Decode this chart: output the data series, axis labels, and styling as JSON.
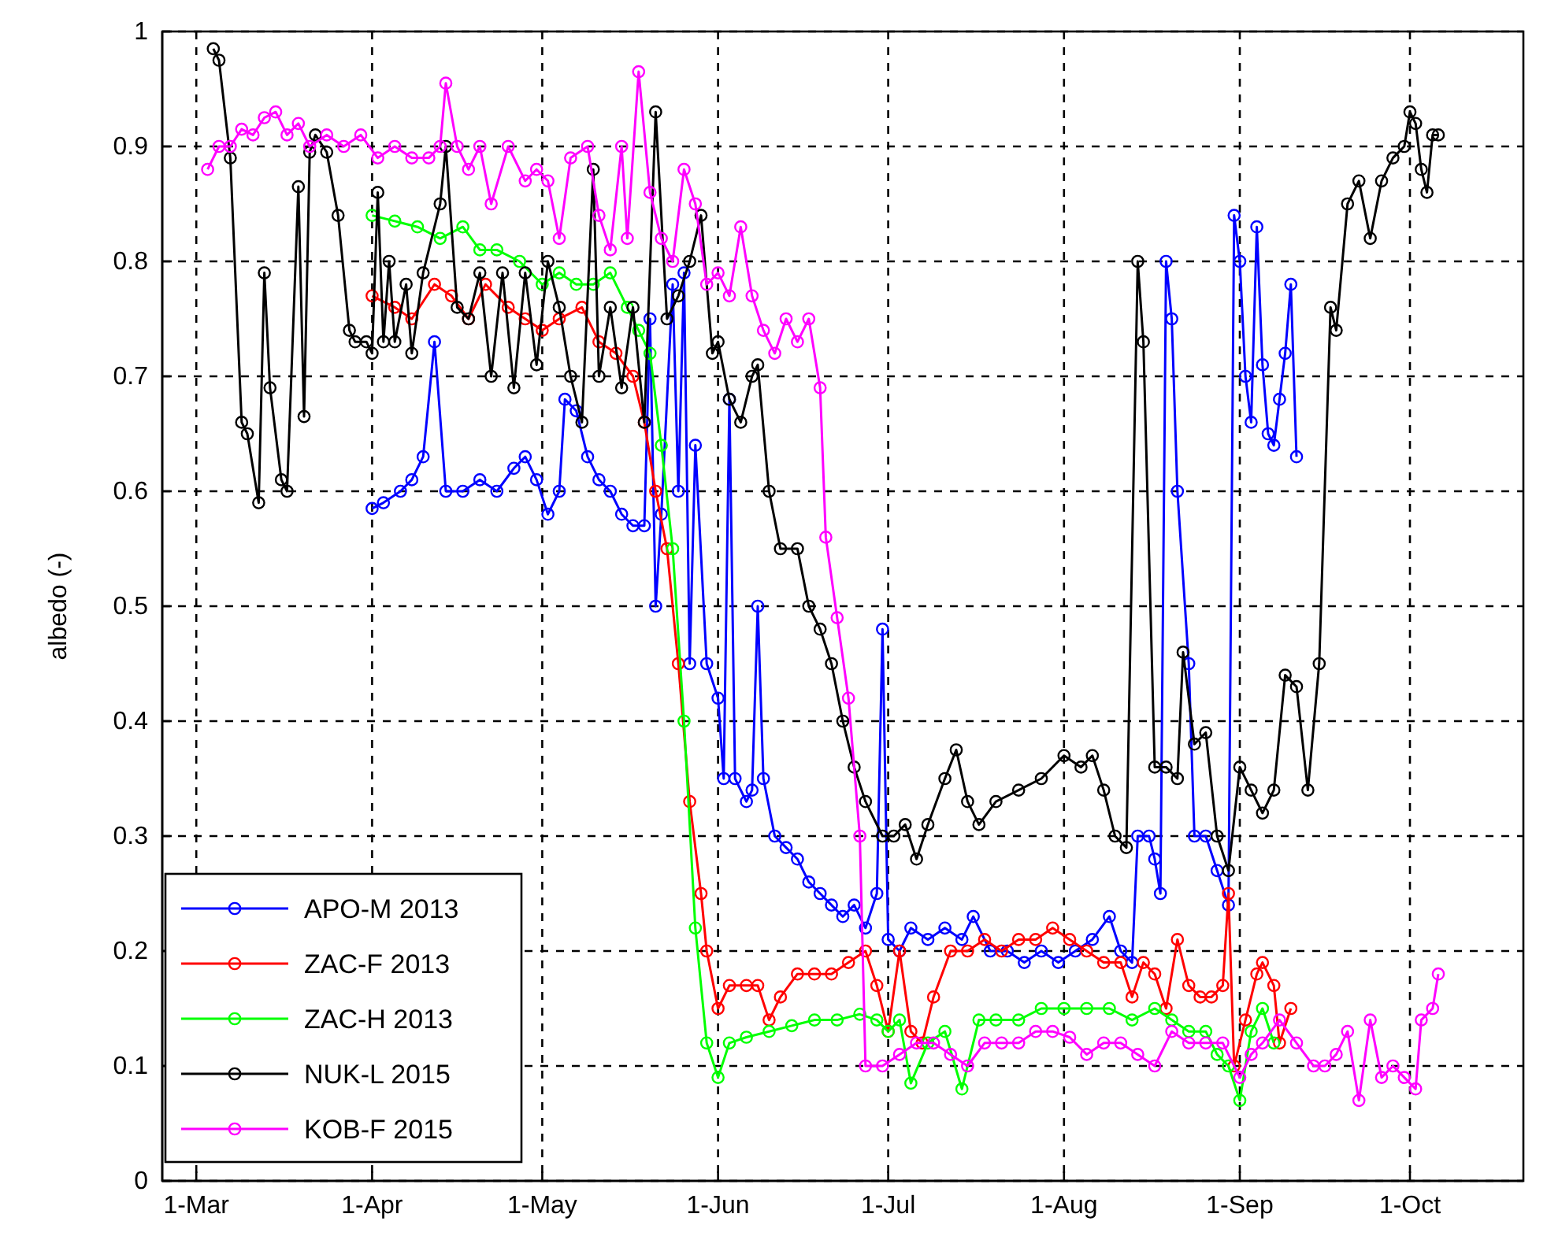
{
  "chart_data": {
    "type": "line",
    "ylabel": "albedo (-)",
    "xlim": [
      "--02-23",
      "--10-21"
    ],
    "ylim": [
      0,
      1
    ],
    "xticks": [
      {
        "value": "--03-01",
        "label": "1-Mar"
      },
      {
        "value": "--04-01",
        "label": "1-Apr"
      },
      {
        "value": "--05-01",
        "label": "1-May"
      },
      {
        "value": "--06-01",
        "label": "1-Jun"
      },
      {
        "value": "--07-01",
        "label": "1-Jul"
      },
      {
        "value": "--08-01",
        "label": "1-Aug"
      },
      {
        "value": "--09-01",
        "label": "1-Sep"
      },
      {
        "value": "--10-01",
        "label": "1-Oct"
      }
    ],
    "yticks": [
      0,
      0.1,
      0.2,
      0.3,
      0.4,
      0.5,
      0.6,
      0.7,
      0.8,
      0.9,
      1
    ],
    "grid": true,
    "legend": "bottom left",
    "marker": "circle",
    "line_style": "solid",
    "series": [
      {
        "name": "APO-M 2013",
        "color": "#0000ff",
        "x": [
          "--04-01",
          "--04-03",
          "--04-06",
          "--04-08",
          "--04-10",
          "--04-12",
          "--04-14",
          "--04-17",
          "--04-20",
          "--04-23",
          "--04-26",
          "--04-28",
          "--04-30",
          "--05-02",
          "--05-04",
          "--05-05",
          "--05-07",
          "--05-09",
          "--05-11",
          "--05-13",
          "--05-15",
          "--05-17",
          "--05-19",
          "--05-20",
          "--05-21",
          "--05-22",
          "--05-24",
          "--05-25",
          "--05-26",
          "--05-27",
          "--05-28",
          "--05-30",
          "--06-01",
          "--06-02",
          "--06-03",
          "--06-04",
          "--06-06",
          "--06-07",
          "--06-08",
          "--06-09",
          "--06-11",
          "--06-13",
          "--06-15",
          "--06-17",
          "--06-19",
          "--06-21",
          "--06-23",
          "--06-25",
          "--06-27",
          "--06-29",
          "--06-30",
          "--07-01",
          "--07-03",
          "--07-05",
          "--07-08",
          "--07-11",
          "--07-14",
          "--07-16",
          "--07-19",
          "--07-22",
          "--07-25",
          "--07-28",
          "--07-31",
          "--08-03",
          "--08-06",
          "--08-09",
          "--08-11",
          "--08-13",
          "--08-14",
          "--08-16",
          "--08-17",
          "--08-18",
          "--08-19",
          "--08-20",
          "--08-21",
          "--08-23",
          "--08-24",
          "--08-26",
          "--08-28",
          "--08-30",
          "--08-31",
          "--09-01",
          "--09-02",
          "--09-03",
          "--09-04",
          "--09-05",
          "--09-06",
          "--09-07",
          "--09-08",
          "--09-09",
          "--09-10",
          "--09-11"
        ],
        "values": [
          0.585,
          0.59,
          0.6,
          0.61,
          0.63,
          0.73,
          0.6,
          0.6,
          0.61,
          0.6,
          0.62,
          0.63,
          0.61,
          0.58,
          0.6,
          0.68,
          0.67,
          0.63,
          0.61,
          0.6,
          0.58,
          0.57,
          0.57,
          0.75,
          0.5,
          0.58,
          0.78,
          0.6,
          0.79,
          0.45,
          0.64,
          0.45,
          0.42,
          0.35,
          0.68,
          0.35,
          0.33,
          0.34,
          0.5,
          0.35,
          0.3,
          0.29,
          0.28,
          0.26,
          0.25,
          0.24,
          0.23,
          0.24,
          0.22,
          0.25,
          0.48,
          0.21,
          0.2,
          0.22,
          0.21,
          0.22,
          0.21,
          0.23,
          0.2,
          0.2,
          0.19,
          0.2,
          0.19,
          0.2,
          0.21,
          0.23,
          0.2,
          0.19,
          0.3,
          0.3,
          0.28,
          0.25,
          0.8,
          0.75,
          0.6,
          0.45,
          0.3,
          0.3,
          0.27,
          0.24,
          0.84,
          0.8,
          0.7,
          0.66,
          0.83,
          0.71,
          0.65,
          0.64,
          0.68,
          0.72,
          0.78,
          0.63
        ]
      },
      {
        "name": "ZAC-F 2013",
        "color": "#ff0000",
        "x": [
          "--04-01",
          "--04-05",
          "--04-08",
          "--04-12",
          "--04-15",
          "--04-18",
          "--04-21",
          "--04-25",
          "--04-28",
          "--05-01",
          "--05-04",
          "--05-08",
          "--05-11",
          "--05-14",
          "--05-17",
          "--05-19",
          "--05-21",
          "--05-23",
          "--05-25",
          "--05-27",
          "--05-29",
          "--05-30",
          "--06-01",
          "--06-03",
          "--06-06",
          "--06-08",
          "--06-10",
          "--06-12",
          "--06-15",
          "--06-18",
          "--06-21",
          "--06-24",
          "--06-27",
          "--06-29",
          "--07-01",
          "--07-03",
          "--07-05",
          "--07-07",
          "--07-09",
          "--07-12",
          "--07-15",
          "--07-18",
          "--07-21",
          "--07-24",
          "--07-27",
          "--07-30",
          "--08-02",
          "--08-05",
          "--08-08",
          "--08-11",
          "--08-13",
          "--08-15",
          "--08-17",
          "--08-19",
          "--08-21",
          "--08-23",
          "--08-25",
          "--08-27",
          "--08-29",
          "--08-30",
          "--08-31",
          "--09-02",
          "--09-04",
          "--09-05",
          "--09-07",
          "--09-08",
          "--09-10"
        ],
        "values": [
          0.77,
          0.76,
          0.75,
          0.78,
          0.77,
          0.75,
          0.78,
          0.76,
          0.75,
          0.74,
          0.75,
          0.76,
          0.73,
          0.72,
          0.7,
          0.66,
          0.6,
          0.55,
          0.45,
          0.33,
          0.25,
          0.2,
          0.15,
          0.17,
          0.17,
          0.17,
          0.14,
          0.16,
          0.18,
          0.18,
          0.18,
          0.19,
          0.2,
          0.17,
          0.13,
          0.2,
          0.13,
          0.12,
          0.16,
          0.2,
          0.2,
          0.21,
          0.2,
          0.21,
          0.21,
          0.22,
          0.21,
          0.2,
          0.19,
          0.19,
          0.16,
          0.19,
          0.18,
          0.15,
          0.21,
          0.17,
          0.16,
          0.16,
          0.17,
          0.25,
          0.1,
          0.14,
          0.18,
          0.19,
          0.17,
          0.12,
          0.15
        ]
      },
      {
        "name": "ZAC-H 2013",
        "color": "#00ff00",
        "x": [
          "--04-01",
          "--04-05",
          "--04-09",
          "--04-13",
          "--04-17",
          "--04-20",
          "--04-23",
          "--04-27",
          "--05-01",
          "--05-04",
          "--05-07",
          "--05-10",
          "--05-13",
          "--05-16",
          "--05-18",
          "--05-20",
          "--05-22",
          "--05-24",
          "--05-26",
          "--05-28",
          "--05-30",
          "--06-01",
          "--06-03",
          "--06-06",
          "--06-10",
          "--06-14",
          "--06-18",
          "--06-22",
          "--06-26",
          "--06-29",
          "--07-01",
          "--07-03",
          "--07-05",
          "--07-08",
          "--07-11",
          "--07-14",
          "--07-17",
          "--07-20",
          "--07-24",
          "--07-28",
          "--08-01",
          "--08-05",
          "--08-09",
          "--08-13",
          "--08-17",
          "--08-20",
          "--08-23",
          "--08-26",
          "--08-28",
          "--08-30",
          "--09-01",
          "--09-03",
          "--09-05",
          "--09-07"
        ],
        "values": [
          0.84,
          0.835,
          0.83,
          0.82,
          0.83,
          0.81,
          0.81,
          0.8,
          0.78,
          0.79,
          0.78,
          0.78,
          0.79,
          0.76,
          0.74,
          0.72,
          0.64,
          0.55,
          0.4,
          0.22,
          0.12,
          0.09,
          0.12,
          0.125,
          0.13,
          0.135,
          0.14,
          0.14,
          0.145,
          0.14,
          0.13,
          0.14,
          0.085,
          0.12,
          0.13,
          0.08,
          0.14,
          0.14,
          0.14,
          0.15,
          0.15,
          0.15,
          0.15,
          0.14,
          0.15,
          0.14,
          0.13,
          0.13,
          0.11,
          0.1,
          0.07,
          0.13,
          0.15,
          0.12
        ]
      },
      {
        "name": "NUK-L 2015",
        "color": "#000000",
        "x": [
          "--03-04",
          "--03-05",
          "--03-07",
          "--03-09",
          "--03-10",
          "--03-12",
          "--03-13",
          "--03-14",
          "--03-16",
          "--03-17",
          "--03-19",
          "--03-20",
          "--03-21",
          "--03-22",
          "--03-24",
          "--03-26",
          "--03-28",
          "--03-29",
          "--03-31",
          "--04-01",
          "--04-02",
          "--04-03",
          "--04-04",
          "--04-05",
          "--04-07",
          "--04-08",
          "--04-10",
          "--04-13",
          "--04-14",
          "--04-16",
          "--04-18",
          "--04-20",
          "--04-22",
          "--04-24",
          "--04-26",
          "--04-28",
          "--04-30",
          "--05-02",
          "--05-04",
          "--05-06",
          "--05-08",
          "--05-10",
          "--05-11",
          "--05-13",
          "--05-15",
          "--05-17",
          "--05-19",
          "--05-21",
          "--05-23",
          "--05-25",
          "--05-27",
          "--05-29",
          "--05-31",
          "--06-01",
          "--06-03",
          "--06-05",
          "--06-07",
          "--06-08",
          "--06-10",
          "--06-12",
          "--06-15",
          "--06-17",
          "--06-19",
          "--06-21",
          "--06-23",
          "--06-25",
          "--06-27",
          "--06-30",
          "--07-02",
          "--07-04",
          "--07-06",
          "--07-08",
          "--07-11",
          "--07-13",
          "--07-15",
          "--07-17",
          "--07-20",
          "--07-24",
          "--07-28",
          "--08-01",
          "--08-04",
          "--08-06",
          "--08-08",
          "--08-10",
          "--08-12",
          "--08-14",
          "--08-15",
          "--08-17",
          "--08-19",
          "--08-21",
          "--08-22",
          "--08-24",
          "--08-26",
          "--08-28",
          "--08-30",
          "--09-01",
          "--09-03",
          "--09-05",
          "--09-07",
          "--09-09",
          "--09-11",
          "--09-13",
          "--09-15",
          "--09-17",
          "--09-18",
          "--09-20",
          "--09-22",
          "--09-24",
          "--09-26",
          "--09-28",
          "--09-30",
          "--10-01",
          "--10-02",
          "--10-03",
          "--10-04",
          "--10-05",
          "--10-06"
        ],
        "values": [
          0.985,
          0.975,
          0.89,
          0.66,
          0.65,
          0.59,
          0.79,
          0.69,
          0.61,
          0.6,
          0.865,
          0.665,
          0.895,
          0.91,
          0.895,
          0.84,
          0.74,
          0.73,
          0.73,
          0.72,
          0.86,
          0.73,
          0.8,
          0.73,
          0.78,
          0.72,
          0.79,
          0.85,
          0.9,
          0.76,
          0.75,
          0.79,
          0.7,
          0.79,
          0.69,
          0.79,
          0.71,
          0.8,
          0.76,
          0.7,
          0.66,
          0.88,
          0.7,
          0.76,
          0.69,
          0.76,
          0.66,
          0.93,
          0.75,
          0.77,
          0.8,
          0.84,
          0.72,
          0.73,
          0.68,
          0.66,
          0.7,
          0.71,
          0.6,
          0.55,
          0.55,
          0.5,
          0.48,
          0.45,
          0.4,
          0.36,
          0.33,
          0.3,
          0.3,
          0.31,
          0.28,
          0.31,
          0.35,
          0.375,
          0.33,
          0.31,
          0.33,
          0.34,
          0.35,
          0.37,
          0.36,
          0.37,
          0.34,
          0.3,
          0.29,
          0.8,
          0.73,
          0.36,
          0.36,
          0.35,
          0.46,
          0.38,
          0.39,
          0.3,
          0.27,
          0.36,
          0.34,
          0.32,
          0.34,
          0.44,
          0.43,
          0.34,
          0.45,
          0.76,
          0.74,
          0.85,
          0.87,
          0.82,
          0.87,
          0.89,
          0.9,
          0.93,
          0.92,
          0.88,
          0.86,
          0.91,
          0.91
        ]
      },
      {
        "name": "KOB-F 2015",
        "color": "#ff00ff",
        "x": [
          "--03-03",
          "--03-05",
          "--03-07",
          "--03-09",
          "--03-11",
          "--03-13",
          "--03-15",
          "--03-17",
          "--03-19",
          "--03-21",
          "--03-24",
          "--03-27",
          "--03-30",
          "--04-02",
          "--04-05",
          "--04-08",
          "--04-11",
          "--04-13",
          "--04-14",
          "--04-16",
          "--04-18",
          "--04-20",
          "--04-22",
          "--04-25",
          "--04-28",
          "--04-30",
          "--05-02",
          "--05-04",
          "--05-06",
          "--05-09",
          "--05-11",
          "--05-13",
          "--05-15",
          "--05-16",
          "--05-18",
          "--05-20",
          "--05-22",
          "--05-24",
          "--05-26",
          "--05-28",
          "--05-30",
          "--06-01",
          "--06-03",
          "--06-05",
          "--06-07",
          "--06-09",
          "--06-11",
          "--06-13",
          "--06-15",
          "--06-17",
          "--06-19",
          "--06-20",
          "--06-22",
          "--06-24",
          "--06-26",
          "--06-27",
          "--06-30",
          "--07-03",
          "--07-06",
          "--07-09",
          "--07-12",
          "--07-15",
          "--07-18",
          "--07-21",
          "--07-24",
          "--07-27",
          "--07-30",
          "--08-02",
          "--08-05",
          "--08-08",
          "--08-11",
          "--08-14",
          "--08-17",
          "--08-20",
          "--08-23",
          "--08-26",
          "--08-29",
          "--09-01",
          "--09-03",
          "--09-05",
          "--09-08",
          "--09-11",
          "--09-14",
          "--09-16",
          "--09-18",
          "--09-20",
          "--09-22",
          "--09-24",
          "--09-26",
          "--09-28",
          "--09-30",
          "--10-02",
          "--10-03",
          "--10-05",
          "--10-06"
        ],
        "values": [
          0.88,
          0.9,
          0.9,
          0.915,
          0.91,
          0.925,
          0.93,
          0.91,
          0.92,
          0.9,
          0.91,
          0.9,
          0.91,
          0.89,
          0.9,
          0.89,
          0.89,
          0.9,
          0.955,
          0.9,
          0.88,
          0.9,
          0.85,
          0.9,
          0.87,
          0.88,
          0.87,
          0.82,
          0.89,
          0.9,
          0.84,
          0.81,
          0.9,
          0.82,
          0.965,
          0.86,
          0.82,
          0.8,
          0.88,
          0.85,
          0.78,
          0.79,
          0.77,
          0.83,
          0.77,
          0.74,
          0.72,
          0.75,
          0.73,
          0.75,
          0.69,
          0.56,
          0.49,
          0.42,
          0.3,
          0.1,
          0.1,
          0.11,
          0.12,
          0.12,
          0.11,
          0.1,
          0.12,
          0.12,
          0.12,
          0.13,
          0.13,
          0.125,
          0.11,
          0.12,
          0.12,
          0.11,
          0.1,
          0.13,
          0.12,
          0.12,
          0.12,
          0.09,
          0.11,
          0.12,
          0.14,
          0.12,
          0.1,
          0.1,
          0.11,
          0.13,
          0.07,
          0.14,
          0.09,
          0.1,
          0.09,
          0.08,
          0.14,
          0.15,
          0.18
        ]
      }
    ]
  }
}
